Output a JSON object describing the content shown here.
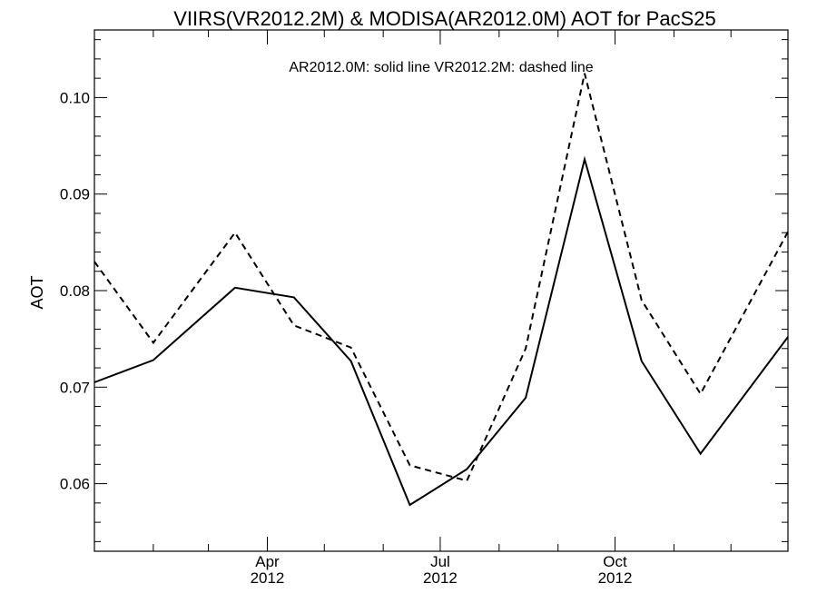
{
  "chart_data": {
    "type": "line",
    "title": "VIIRS(VR2012.2M) & MODISA(AR2012.0M)  AOT for PacS25",
    "legend_text": "AR2012.0M: solid line   VR2012.2M: dashed line",
    "ylabel": "AOT",
    "xlabel": "",
    "ylim": [
      0.053,
      0.107
    ],
    "y_ticks": [
      {
        "value": 0.06,
        "label": "0.06"
      },
      {
        "value": 0.07,
        "label": "0.07"
      },
      {
        "value": 0.08,
        "label": "0.08"
      },
      {
        "value": 0.09,
        "label": "0.09"
      },
      {
        "value": 0.1,
        "label": "0.10"
      }
    ],
    "y_minor_step": 0.002,
    "xlim": [
      "2012-01-01",
      "2012-12-31"
    ],
    "x_major_ticks": [
      {
        "date": "2012-04-01",
        "month": "Apr",
        "year": "2012"
      },
      {
        "date": "2012-07-01",
        "month": "Jul",
        "year": "2012"
      },
      {
        "date": "2012-10-01",
        "month": "Oct",
        "year": "2012"
      }
    ],
    "x_minor_ticks": [
      "2012-02-01",
      "2012-03-01",
      "2012-05-01",
      "2012-06-01",
      "2012-08-01",
      "2012-09-01",
      "2012-11-01",
      "2012-12-01"
    ],
    "series": [
      {
        "name": "AR2012.0M",
        "style": "solid",
        "x": [
          "2012-01-01",
          "2012-02-01",
          "2012-03-15",
          "2012-04-15",
          "2012-05-15",
          "2012-06-15",
          "2012-07-15",
          "2012-08-15",
          "2012-09-15",
          "2012-10-15",
          "2012-11-15",
          "2012-12-31"
        ],
        "values": [
          0.0705,
          0.0728,
          0.0803,
          0.0793,
          0.0727,
          0.0578,
          0.0615,
          0.0689,
          0.0936,
          0.0727,
          0.0631,
          0.0752
        ]
      },
      {
        "name": "VR2012.2M",
        "style": "dashed",
        "x": [
          "2012-01-01",
          "2012-02-01",
          "2012-03-15",
          "2012-04-15",
          "2012-05-15",
          "2012-06-15",
          "2012-07-15",
          "2012-08-15",
          "2012-09-15",
          "2012-10-15",
          "2012-11-15",
          "2012-12-31"
        ],
        "values": [
          0.083,
          0.0746,
          0.086,
          0.0764,
          0.0741,
          0.0619,
          0.0603,
          0.074,
          0.1025,
          0.079,
          0.0693,
          0.0861
        ]
      }
    ]
  }
}
